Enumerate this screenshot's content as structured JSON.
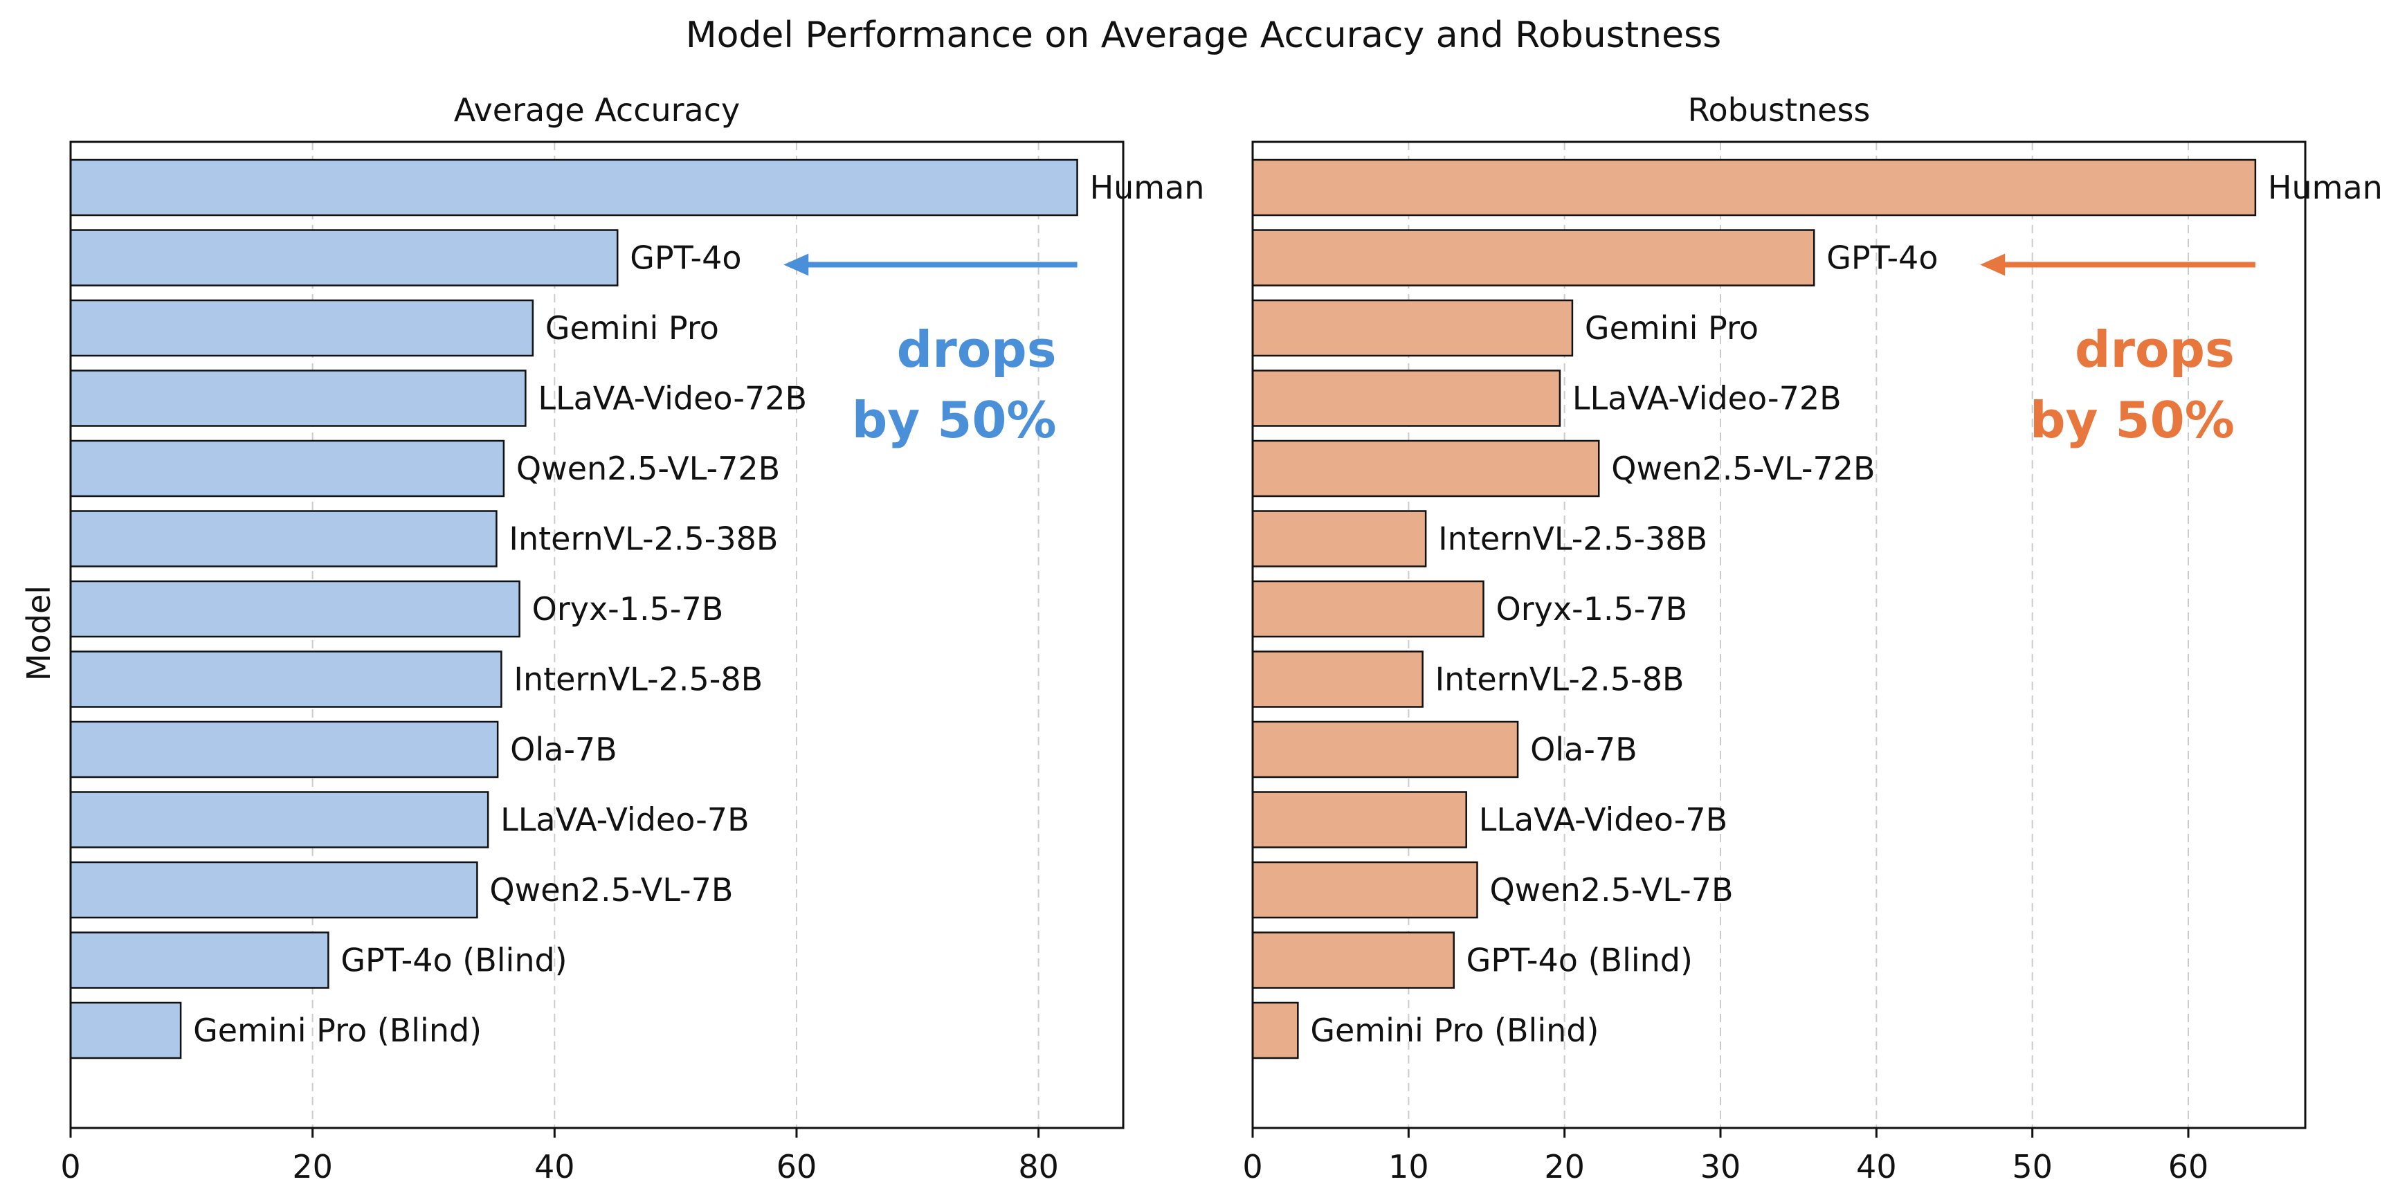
{
  "figure_title": "Model Performance on Average Accuracy and Robustness",
  "shared_ylabel": "Model",
  "chart_data": [
    {
      "type": "bar",
      "orientation": "horizontal",
      "title": "Average Accuracy",
      "xlabel": "",
      "ylabel": "Model",
      "xlim": [
        0,
        87
      ],
      "xticks": [
        0,
        20,
        40,
        60,
        80
      ],
      "grid": "vertical dashed",
      "bar_color": "#adc8e9",
      "categories": [
        "Human",
        "GPT-4o",
        "Gemini Pro",
        "LLaVA-Video-72B",
        "Qwen2.5-VL-72B",
        "InternVL-2.5-38B",
        "Oryx-1.5-7B",
        "InternVL-2.5-8B",
        "Ola-7B",
        "LLaVA-Video-7B",
        "Qwen2.5-VL-7B",
        "GPT-4o (Blind)",
        "Gemini Pro (Blind)"
      ],
      "values": [
        83.2,
        45.2,
        38.2,
        37.6,
        35.8,
        35.2,
        37.1,
        35.6,
        35.3,
        34.5,
        33.6,
        21.3,
        9.1
      ],
      "annotation": {
        "line1": "drops",
        "line2": "by 50%",
        "color": "#4a90d9",
        "arrow_from": "Human",
        "arrow_to": "GPT-4o"
      }
    },
    {
      "type": "bar",
      "orientation": "horizontal",
      "title": "Robustness",
      "xlabel": "",
      "ylabel": "",
      "xlim": [
        0,
        67.5
      ],
      "xticks": [
        0,
        10,
        20,
        30,
        40,
        50,
        60
      ],
      "grid": "vertical dashed",
      "bar_color": "#e8ae8b",
      "categories": [
        "Human",
        "GPT-4o",
        "Gemini Pro",
        "LLaVA-Video-72B",
        "Qwen2.5-VL-72B",
        "InternVL-2.5-38B",
        "Oryx-1.5-7B",
        "InternVL-2.5-8B",
        "Ola-7B",
        "LLaVA-Video-7B",
        "Qwen2.5-VL-7B",
        "GPT-4o (Blind)",
        "Gemini Pro (Blind)"
      ],
      "values": [
        64.3,
        36.0,
        20.5,
        19.7,
        22.2,
        11.1,
        14.8,
        10.9,
        17.0,
        13.7,
        14.4,
        12.9,
        2.9
      ],
      "annotation": {
        "line1": "drops",
        "line2": "by 50%",
        "color": "#e8773e",
        "arrow_from": "Human",
        "arrow_to": "GPT-4o"
      }
    }
  ]
}
